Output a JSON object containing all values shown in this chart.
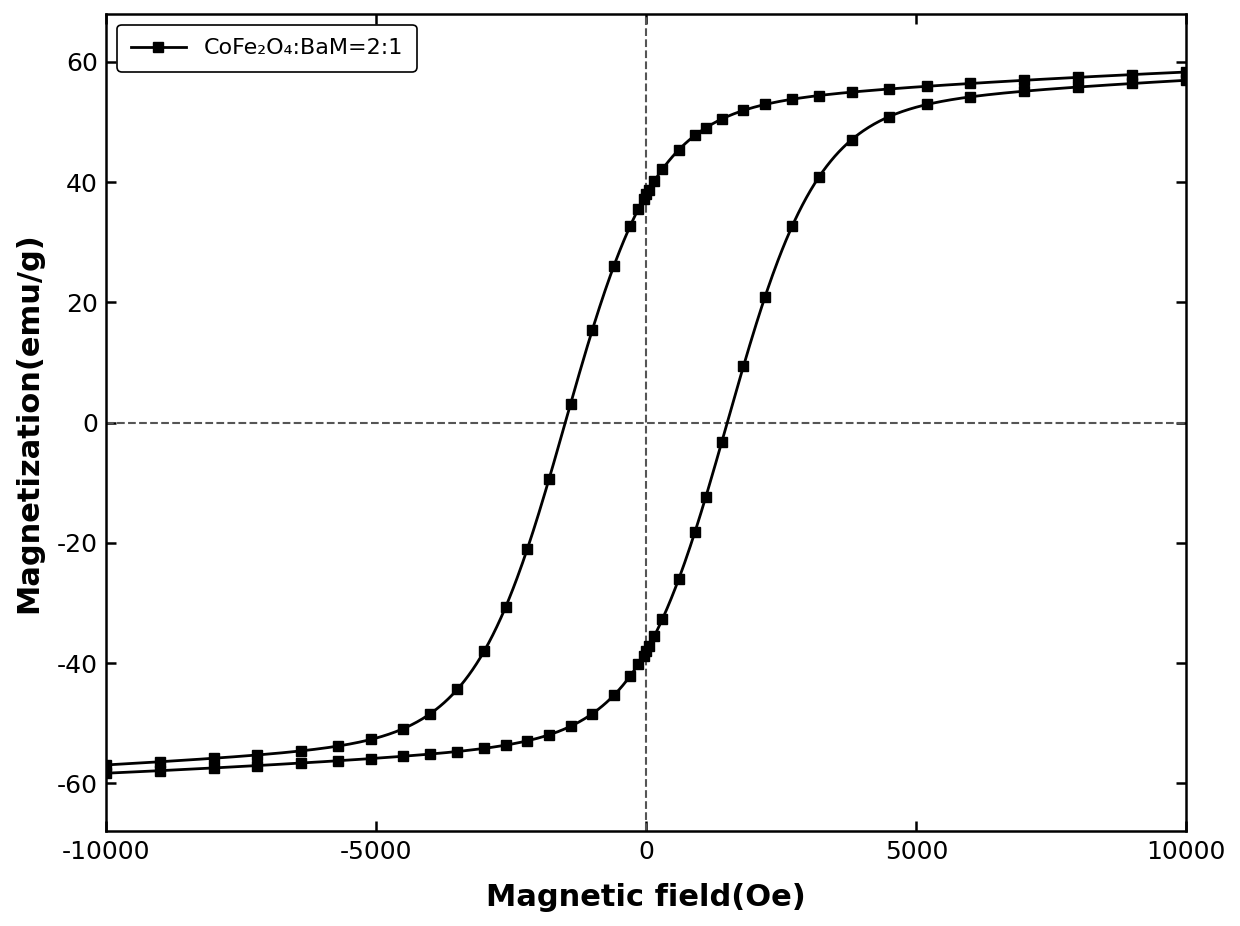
{
  "xlabel": "Magnetic field(Oe)",
  "ylabel": "Magnetization(emu/g)",
  "legend_label": "CoFe₂O₄:BaM=2:1",
  "xlim": [
    -10000,
    10000
  ],
  "ylim": [
    -68,
    68
  ],
  "xticks": [
    -10000,
    -5000,
    0,
    5000,
    10000
  ],
  "yticks": [
    -60,
    -40,
    -20,
    0,
    20,
    40,
    60
  ],
  "Ms": 66.5,
  "Mr": 38.0,
  "Hc": 1500,
  "k_shape": 0.00018,
  "k_sat": 0.00012,
  "line_color": "#000000",
  "marker": "s",
  "marker_size": 7,
  "line_width": 2.0,
  "dashed_color": "#555555",
  "H_markers": [
    -10000,
    -9000,
    -8000,
    -7200,
    -6400,
    -5700,
    -5100,
    -4500,
    -4000,
    -3500,
    -3000,
    -2600,
    -2200,
    -1800,
    -1400,
    -1000,
    -600,
    -300,
    -150,
    -50,
    0,
    50,
    150,
    300,
    600,
    900,
    1100,
    1400,
    1800,
    2200,
    2700,
    3200,
    3800,
    4500,
    5200,
    6000,
    7000,
    8000,
    9000,
    10000
  ]
}
